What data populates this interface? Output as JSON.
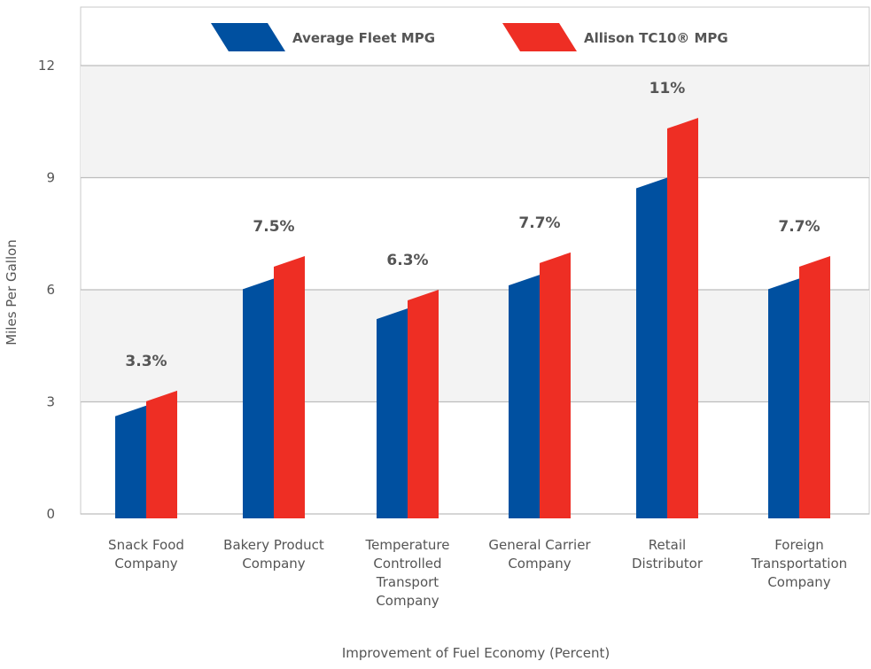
{
  "chart_data": {
    "type": "bar",
    "title": "",
    "xlabel": "Improvement of Fuel Economy (Percent)",
    "ylabel": "Miles Per Gallon",
    "ylim": [
      0,
      12
    ],
    "yticks": [
      "0",
      "3",
      "6",
      "9",
      "12"
    ],
    "categories": [
      [
        "Snack Food",
        "Company"
      ],
      [
        "Bakery Product",
        "Company"
      ],
      [
        "Temperature",
        "Controlled",
        "Transport",
        "Company"
      ],
      [
        "General Carrier",
        "Company"
      ],
      [
        "Retail",
        "Distributor"
      ],
      [
        "Foreign",
        "Transportation",
        "Company"
      ]
    ],
    "series": [
      {
        "name": "Average Fleet MPG",
        "values": [
          2.9,
          6.3,
          5.5,
          6.4,
          9.0,
          6.3
        ]
      },
      {
        "name": "Allison TC10® MPG",
        "values": [
          3.3,
          6.9,
          6.0,
          7.0,
          10.6,
          6.9
        ]
      }
    ],
    "data_labels": [
      "3.3%",
      "7.5%",
      "6.3%",
      "7.7%",
      "11%",
      "7.7%"
    ],
    "colors": [
      "#0050a0",
      "#ee2e24"
    ],
    "grid": true,
    "legend": "top-center"
  }
}
